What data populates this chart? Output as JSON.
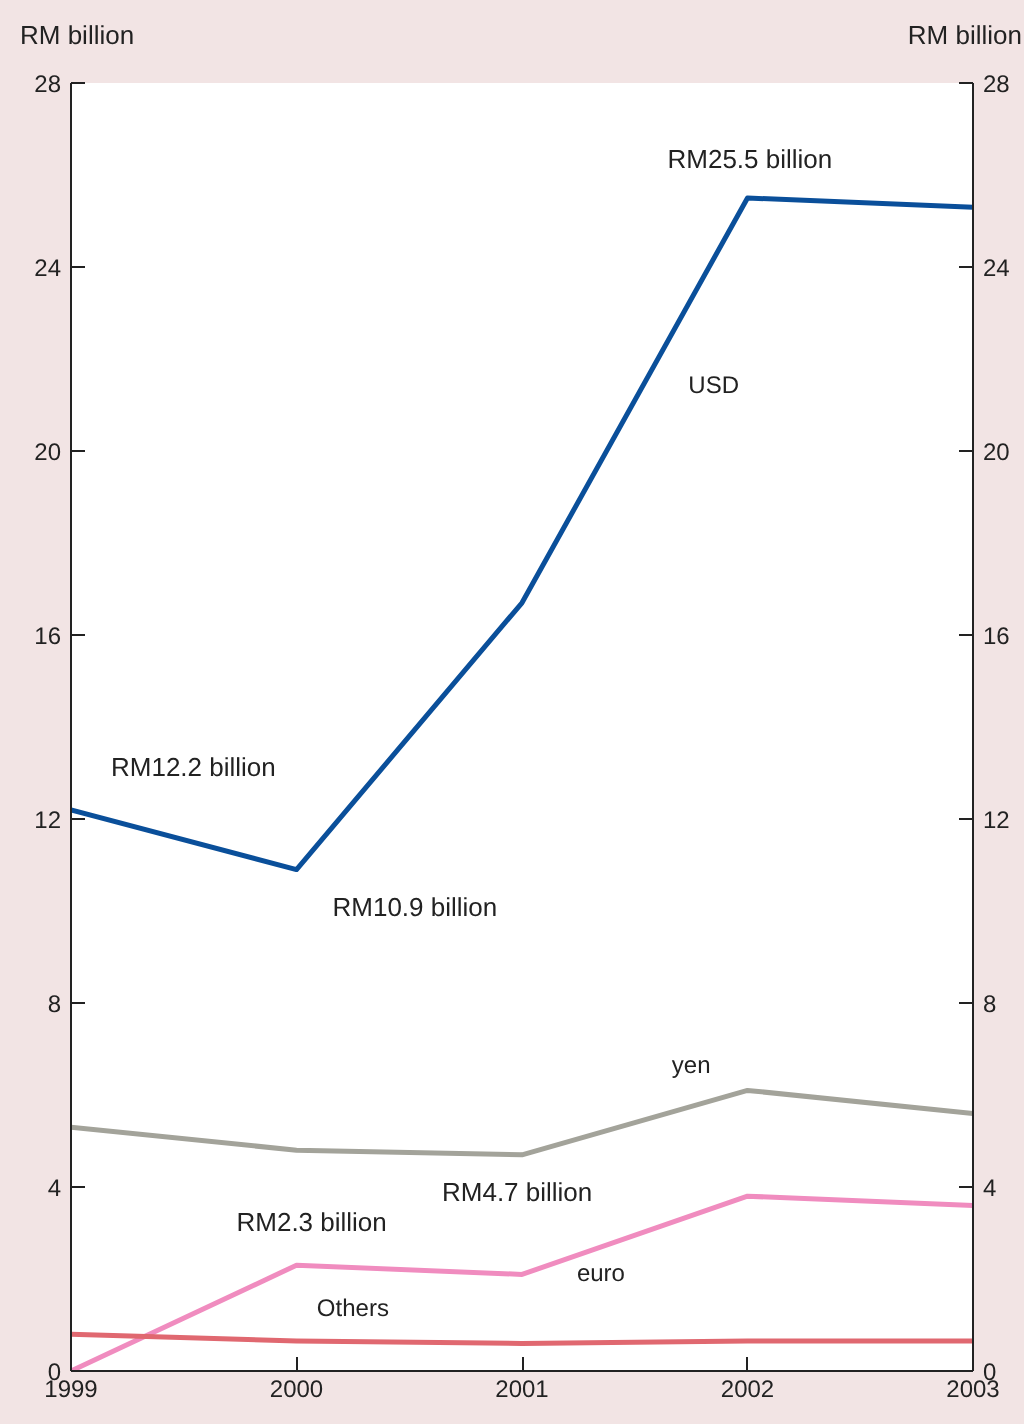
{
  "chart_data": {
    "type": "line",
    "x": [
      1999,
      2000,
      2001,
      2002,
      2003
    ],
    "series": [
      {
        "name": "USD",
        "color": "#0a4f9a",
        "values": [
          12.2,
          10.9,
          16.7,
          25.5,
          25.3
        ]
      },
      {
        "name": "yen",
        "color": "#a3a39a",
        "values": [
          5.3,
          4.8,
          4.7,
          6.1,
          5.6
        ]
      },
      {
        "name": "euro",
        "color": "#f08cbf",
        "values": [
          0,
          2.3,
          2.1,
          3.8,
          3.6
        ]
      },
      {
        "name": "Others",
        "color": "#e06870",
        "values": [
          0.8,
          0.65,
          0.6,
          0.65,
          0.65
        ]
      }
    ],
    "ylabel": "RM billion",
    "y2label": "RM billion",
    "xlim": [
      1999,
      2003
    ],
    "xticks": [
      1999,
      2000,
      2001,
      2002,
      2003
    ],
    "ylim": [
      0,
      28
    ],
    "yticks": [
      0,
      4,
      8,
      12,
      16,
      20,
      24,
      28
    ],
    "y2lim": [
      0,
      28
    ],
    "y2ticks": [
      0,
      4,
      8,
      12,
      16,
      20,
      24,
      28
    ],
    "annotations": [
      {
        "text": "RM12.2 billion",
        "x": 1999,
        "y": 12.2
      },
      {
        "text": "RM10.9 billion",
        "x": 2000,
        "y": 10.9
      },
      {
        "text": "RM25.5 billion",
        "x": 2002,
        "y": 25.5
      },
      {
        "text": "RM4.7 billion",
        "x": 2001,
        "y": 4.7
      },
      {
        "text": "RM2.3 billion",
        "x": 2000,
        "y": 2.3
      }
    ],
    "grid": false,
    "marker": "none",
    "line_style": "solid"
  }
}
